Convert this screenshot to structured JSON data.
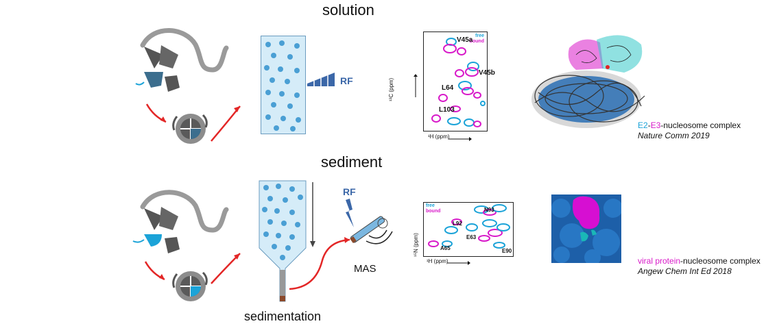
{
  "titles": {
    "solution": "solution",
    "sediment": "sediment",
    "sedimentation": "sedimentation"
  },
  "labels": {
    "rf_top": "RF",
    "rf_bottom": "RF",
    "mas": "MAS"
  },
  "nmr_top": {
    "legend_free": "free",
    "legend_bound": "bound",
    "peaks": [
      "V45a",
      "V45b",
      "L64",
      "L103"
    ],
    "x_axis": "¹H (ppm)",
    "y_axis": "¹³C (ppm)"
  },
  "nmr_bottom": {
    "legend_free": "free",
    "legend_bound": "bound",
    "peaks": [
      "N93",
      "L92",
      "E63",
      "A65",
      "E90"
    ],
    "x_axis": "¹H (ppm)",
    "y_axis": "¹⁵N (ppm)"
  },
  "caption_top": {
    "e2": "E2",
    "dash1": "-",
    "e3": "E3",
    "rest": "-nucleosome complex",
    "journal": "Nature Comm 2019"
  },
  "caption_bottom": {
    "viral": "viral protein",
    "rest": "-nucleosome complex",
    "journal": "Angew Chem Int Ed 2018"
  },
  "colors": {
    "cyan": "#1ba3d8",
    "magenta": "#d819c9",
    "red_arrow": "#e32626",
    "rf_blue": "#3b67a8",
    "tube_fill": "#d5ecf8",
    "particle": "#4a9fd4"
  }
}
